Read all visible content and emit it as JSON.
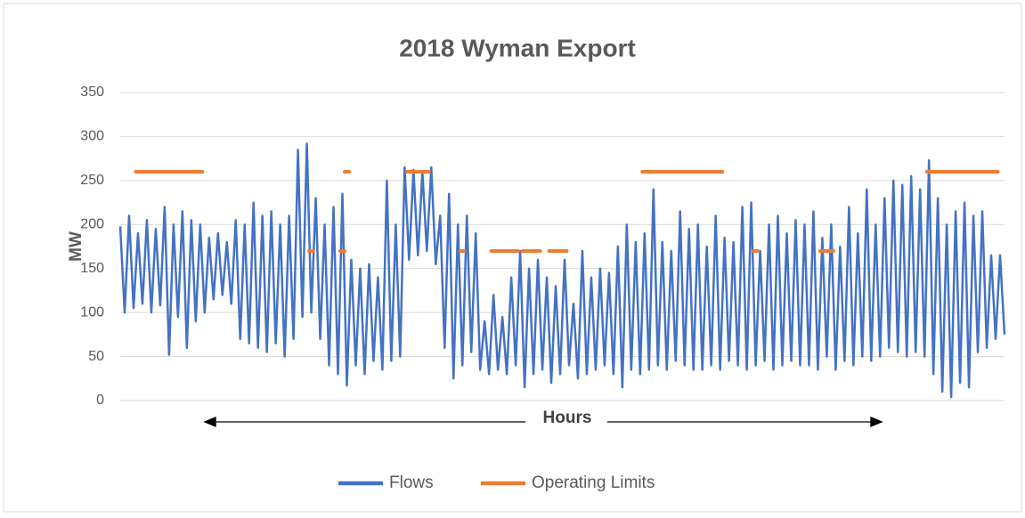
{
  "chart_data": {
    "type": "line",
    "title": "2018 Wyman Export",
    "xlabel": "Hours",
    "ylabel": "MW",
    "ylim": [
      0,
      350
    ],
    "yticks": [
      0,
      50,
      100,
      150,
      200,
      250,
      300,
      350
    ],
    "grid": true,
    "legend": "bottom",
    "series": [
      {
        "name": "Flows",
        "color": "#4472c4",
        "values": [
          198,
          100,
          210,
          105,
          190,
          110,
          205,
          100,
          195,
          108,
          220,
          52,
          200,
          95,
          215,
          60,
          205,
          90,
          200,
          100,
          185,
          115,
          190,
          120,
          180,
          110,
          205,
          70,
          200,
          65,
          225,
          60,
          210,
          55,
          215,
          65,
          200,
          50,
          210,
          70,
          285,
          95,
          292,
          100,
          230,
          70,
          200,
          40,
          220,
          30,
          235,
          17,
          160,
          40,
          150,
          30,
          155,
          45,
          140,
          35,
          250,
          45,
          200,
          50,
          265,
          160,
          262,
          165,
          260,
          170,
          265,
          155,
          210,
          60,
          235,
          25,
          200,
          40,
          210,
          55,
          190,
          35,
          90,
          30,
          120,
          35,
          95,
          30,
          140,
          40,
          170,
          15,
          150,
          30,
          160,
          35,
          140,
          20,
          130,
          30,
          160,
          40,
          110,
          25,
          170,
          30,
          140,
          35,
          150,
          40,
          145,
          30,
          175,
          15,
          200,
          35,
          180,
          30,
          190,
          35,
          240,
          40,
          180,
          35,
          170,
          45,
          215,
          40,
          195,
          35,
          200,
          35,
          175,
          40,
          210,
          35,
          185,
          45,
          180,
          40,
          220,
          35,
          225,
          40,
          170,
          45,
          200,
          35,
          210,
          40,
          190,
          45,
          205,
          40,
          200,
          40,
          215,
          35,
          185,
          50,
          200,
          35,
          175,
          45,
          220,
          40,
          190,
          50,
          240,
          45,
          200,
          50,
          230,
          60,
          250,
          55,
          245,
          50,
          255,
          55,
          240,
          50,
          273,
          30,
          230,
          10,
          200,
          4,
          215,
          20,
          225,
          15,
          210,
          55,
          215,
          60,
          165,
          70,
          165,
          75
        ]
      },
      {
        "name": "Operating Limits",
        "color": "#ed7d31",
        "values": [
          null,
          null,
          null,
          null,
          260,
          260,
          260,
          260,
          260,
          260,
          260,
          260,
          260,
          260,
          260,
          260,
          260,
          260,
          260,
          null,
          null,
          null,
          null,
          null,
          null,
          null,
          null,
          null,
          null,
          null,
          null,
          null,
          null,
          null,
          null,
          null,
          null,
          null,
          null,
          null,
          null,
          null,
          null,
          170,
          null,
          null,
          null,
          null,
          null,
          null,
          170,
          260,
          null,
          null,
          null,
          null,
          null,
          null,
          null,
          null,
          null,
          null,
          null,
          null,
          null,
          260,
          260,
          260,
          260,
          260,
          null,
          null,
          null,
          null,
          null,
          null,
          null,
          170,
          null,
          null,
          null,
          null,
          null,
          null,
          170,
          170,
          170,
          170,
          170,
          170,
          null,
          170,
          170,
          170,
          170,
          null,
          null,
          170,
          170,
          170,
          170,
          null,
          null,
          null,
          null,
          null,
          null,
          null,
          null,
          null,
          null,
          null,
          null,
          null,
          null,
          null,
          null,
          null,
          260,
          260,
          260,
          260,
          260,
          260,
          260,
          260,
          260,
          260,
          260,
          260,
          260,
          260,
          260,
          260,
          260,
          260,
          null,
          null,
          null,
          null,
          null,
          null,
          null,
          170,
          null,
          null,
          null,
          null,
          null,
          null,
          null,
          null,
          null,
          null,
          null,
          null,
          null,
          null,
          170,
          170,
          170,
          null,
          null,
          null,
          null,
          null,
          null,
          null,
          null,
          null,
          null,
          null,
          null,
          null,
          null,
          null,
          null,
          null,
          null,
          null,
          null,
          null,
          260,
          260,
          260,
          260,
          260,
          260,
          260,
          260,
          260,
          260,
          260,
          260,
          260,
          260,
          260,
          260,
          null,
          null
        ]
      }
    ]
  }
}
